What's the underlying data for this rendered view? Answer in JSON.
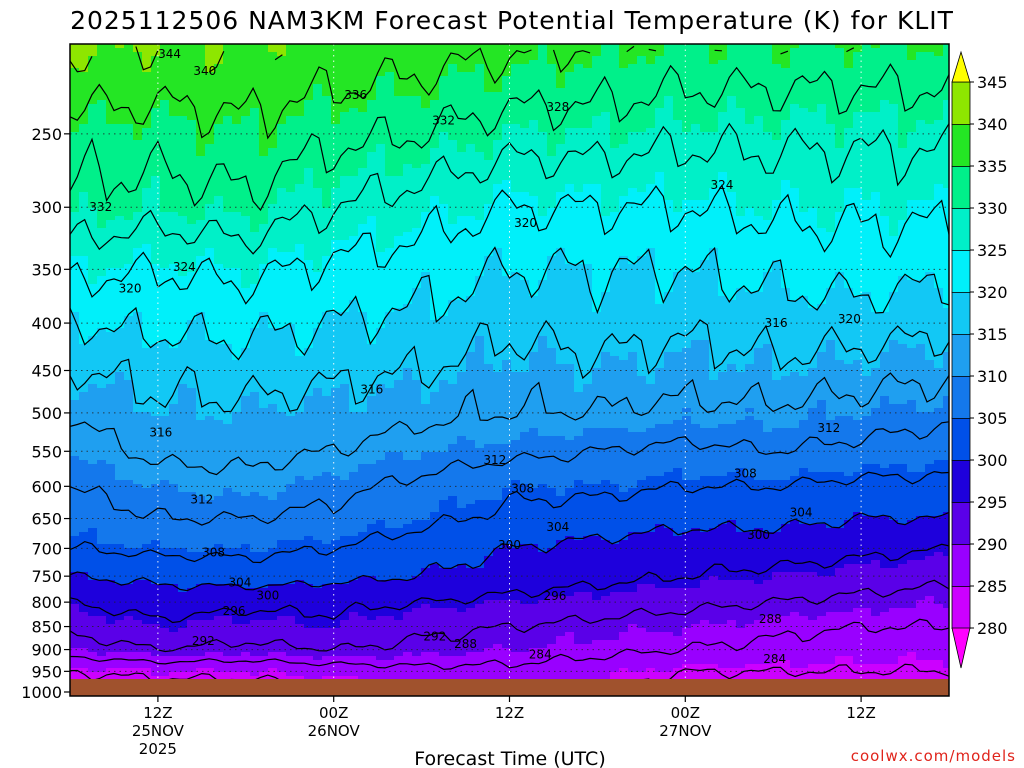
{
  "chart_data": {
    "type": "heatmap",
    "title": "2025112506 NAM3KM Forecast Potential Temperature (K) for KLIT",
    "xlabel": "Forecast Time (UTC)",
    "ylabel": "",
    "credit": "coolwx.com/models",
    "y_axis": {
      "scale": "log",
      "reversed": true,
      "ylim": [
        1010,
        200
      ],
      "ticks": [
        250,
        300,
        350,
        400,
        450,
        500,
        550,
        600,
        650,
        700,
        750,
        800,
        850,
        900,
        950,
        1000
      ],
      "tick_labels": [
        "250",
        "300",
        "350",
        "400",
        "450",
        "500",
        "550",
        "600",
        "650",
        "700",
        "750",
        "800",
        "850",
        "900",
        "950",
        "1000"
      ]
    },
    "x_axis": {
      "xlim_hours": [
        6,
        66
      ],
      "ticks": [
        {
          "hour": 12,
          "lines": [
            "12Z",
            "25NOV",
            "2025"
          ]
        },
        {
          "hour": 24,
          "lines": [
            "00Z",
            "26NOV"
          ]
        },
        {
          "hour": 36,
          "lines": [
            "12Z"
          ]
        },
        {
          "hour": 48,
          "lines": [
            "00Z",
            "27NOV"
          ]
        },
        {
          "hour": 60,
          "lines": [
            "12Z"
          ]
        }
      ]
    },
    "grid": true,
    "colorbar": {
      "levels": [
        280,
        285,
        290,
        295,
        300,
        305,
        310,
        315,
        320,
        325,
        330,
        335,
        340,
        345
      ],
      "tick_labels": [
        "280",
        "285",
        "290",
        "295",
        "300",
        "305",
        "310",
        "315",
        "320",
        "325",
        "330",
        "335",
        "340",
        "345"
      ],
      "colors": [
        "#ff00ff",
        "#cc00ff",
        "#9900ff",
        "#5a00e8",
        "#1e00dc",
        "#0050e8",
        "#1478ec",
        "#1f9ff0",
        "#12c8f5",
        "#00f0fa",
        "#00f0c8",
        "#00f08a",
        "#24e624",
        "#8ee600",
        "#d8f000",
        "#ffff00"
      ]
    },
    "theta_profiles": [
      {
        "hour": 6,
        "values": [
          [
            "1000",
            282
          ],
          [
            "950",
            284
          ],
          [
            "900",
            290
          ],
          [
            "850",
            293
          ],
          [
            "800",
            296
          ],
          [
            "750",
            300
          ],
          [
            "700",
            304
          ],
          [
            "650",
            306
          ],
          [
            "600",
            308
          ],
          [
            "550",
            310
          ],
          [
            "500",
            312
          ],
          [
            "450",
            316
          ],
          [
            "400",
            320
          ],
          [
            "350",
            325
          ],
          [
            "300",
            331
          ],
          [
            "250",
            334
          ],
          [
            "200",
            341
          ]
        ]
      },
      {
        "hour": 12,
        "values": [
          [
            "1000",
            282
          ],
          [
            "950",
            285
          ],
          [
            "900",
            292
          ],
          [
            "850",
            295
          ],
          [
            "800",
            298
          ],
          [
            "750",
            301
          ],
          [
            "700",
            305
          ],
          [
            "650",
            308
          ],
          [
            "600",
            310
          ],
          [
            "550",
            313
          ],
          [
            "500",
            315
          ],
          [
            "450",
            317
          ],
          [
            "400",
            321
          ],
          [
            "350",
            324
          ],
          [
            "300",
            330
          ],
          [
            "250",
            334
          ],
          [
            "200",
            340
          ]
        ]
      },
      {
        "hour": 18,
        "values": [
          [
            "1000",
            282
          ],
          [
            "950",
            285
          ],
          [
            "900",
            291
          ],
          [
            "850",
            294
          ],
          [
            "800",
            297
          ],
          [
            "750",
            302
          ],
          [
            "700",
            305
          ],
          [
            "650",
            308
          ],
          [
            "600",
            311
          ],
          [
            "550",
            313
          ],
          [
            "500",
            315
          ],
          [
            "450",
            318
          ],
          [
            "400",
            321
          ],
          [
            "350",
            325
          ],
          [
            "300",
            331
          ],
          [
            "250",
            335
          ],
          [
            "200",
            340
          ]
        ]
      },
      {
        "hour": 24,
        "values": [
          [
            "1000",
            283
          ],
          [
            "950",
            286
          ],
          [
            "900",
            292
          ],
          [
            "850",
            295
          ],
          [
            "800",
            297
          ],
          [
            "750",
            301
          ],
          [
            "700",
            304
          ],
          [
            "650",
            307
          ],
          [
            "600",
            309
          ],
          [
            "550",
            312
          ],
          [
            "500",
            314
          ],
          [
            "450",
            317
          ],
          [
            "400",
            320
          ],
          [
            "350",
            323
          ],
          [
            "300",
            328
          ],
          [
            "250",
            333
          ],
          [
            "200",
            339
          ]
        ]
      },
      {
        "hour": 30,
        "values": [
          [
            "1000",
            283
          ],
          [
            "950",
            287
          ],
          [
            "900",
            291
          ],
          [
            "850",
            293
          ],
          [
            "800",
            296
          ],
          [
            "750",
            300
          ],
          [
            "700",
            302
          ],
          [
            "650",
            305
          ],
          [
            "600",
            307
          ],
          [
            "550",
            310
          ],
          [
            "500",
            313
          ],
          [
            "450",
            316
          ],
          [
            "400",
            319
          ],
          [
            "350",
            322
          ],
          [
            "300",
            326
          ],
          [
            "250",
            332
          ],
          [
            "200",
            338
          ]
        ]
      },
      {
        "hour": 36,
        "values": [
          [
            "1000",
            285
          ],
          [
            "950",
            287
          ],
          [
            "900",
            290
          ],
          [
            "850",
            292
          ],
          [
            "800",
            295
          ],
          [
            "750",
            298
          ],
          [
            "700",
            300
          ],
          [
            "650",
            303
          ],
          [
            "600",
            305
          ],
          [
            "550",
            309
          ],
          [
            "500",
            312
          ],
          [
            "450",
            314
          ],
          [
            "400",
            317
          ],
          [
            "350",
            320
          ],
          [
            "300",
            324
          ],
          [
            "250",
            330
          ],
          [
            "200",
            337
          ]
        ]
      },
      {
        "hour": 42,
        "values": [
          [
            "1000",
            284
          ],
          [
            "950",
            286
          ],
          [
            "900",
            289
          ],
          [
            "850",
            291
          ],
          [
            "800",
            294
          ],
          [
            "750",
            297
          ],
          [
            "700",
            299
          ],
          [
            "650",
            302
          ],
          [
            "600",
            305
          ],
          [
            "550",
            308
          ],
          [
            "500",
            312
          ],
          [
            "450",
            315
          ],
          [
            "400",
            318
          ],
          [
            "350",
            320
          ],
          [
            "300",
            324
          ],
          [
            "250",
            330
          ],
          [
            "200",
            336
          ]
        ]
      },
      {
        "hour": 48,
        "values": [
          [
            "1000",
            282
          ],
          [
            "950",
            284
          ],
          [
            "900",
            288
          ],
          [
            "850",
            290
          ],
          [
            "800",
            293
          ],
          [
            "750",
            296
          ],
          [
            "700",
            298
          ],
          [
            "650",
            301
          ],
          [
            "600",
            304
          ],
          [
            "550",
            307
          ],
          [
            "500",
            311
          ],
          [
            "450",
            314
          ],
          [
            "400",
            317
          ],
          [
            "350",
            320
          ],
          [
            "300",
            324
          ],
          [
            "250",
            329
          ],
          [
            "200",
            335
          ]
        ]
      },
      {
        "hour": 54,
        "values": [
          [
            "1000",
            282
          ],
          [
            "950",
            284
          ],
          [
            "900",
            287
          ],
          [
            "850",
            289
          ],
          [
            "800",
            292
          ],
          [
            "750",
            295
          ],
          [
            "700",
            298
          ],
          [
            "650",
            301
          ],
          [
            "600",
            304
          ],
          [
            "550",
            308
          ],
          [
            "500",
            311
          ],
          [
            "450",
            315
          ],
          [
            "400",
            318
          ],
          [
            "350",
            321
          ],
          [
            "300",
            325
          ],
          [
            "250",
            329
          ],
          [
            "200",
            335
          ]
        ]
      },
      {
        "hour": 60,
        "values": [
          [
            "1000",
            281
          ],
          [
            "950",
            284
          ],
          [
            "900",
            286
          ],
          [
            "850",
            288
          ],
          [
            "800",
            291
          ],
          [
            "750",
            294
          ],
          [
            "700",
            297
          ],
          [
            "650",
            300
          ],
          [
            "600",
            303
          ],
          [
            "550",
            307
          ],
          [
            "500",
            310
          ],
          [
            "450",
            314
          ],
          [
            "400",
            318
          ],
          [
            "350",
            322
          ],
          [
            "300",
            325
          ],
          [
            "250",
            329
          ],
          [
            "200",
            335
          ]
        ]
      },
      {
        "hour": 66,
        "values": [
          [
            "1000",
            281
          ],
          [
            "950",
            284
          ],
          [
            "900",
            286
          ],
          [
            "850",
            288
          ],
          [
            "800",
            290
          ],
          [
            "750",
            293
          ],
          [
            "700",
            296
          ],
          [
            "650",
            300
          ],
          [
            "600",
            303
          ],
          [
            "550",
            306
          ],
          [
            "500",
            309
          ],
          [
            "450",
            313
          ],
          [
            "400",
            317
          ],
          [
            "350",
            321
          ],
          [
            "300",
            325
          ],
          [
            "250",
            329
          ],
          [
            "200",
            335
          ]
        ]
      }
    ],
    "contour_levels": [
      284,
      288,
      292,
      296,
      300,
      304,
      308,
      312,
      316,
      320,
      324,
      328,
      332,
      336,
      340,
      344
    ],
    "contour_labels": [
      {
        "text": "344",
        "hour": 12.8,
        "p": 205
      },
      {
        "text": "340",
        "hour": 15.2,
        "p": 214
      },
      {
        "text": "336",
        "hour": 25.5,
        "p": 227
      },
      {
        "text": "332",
        "hour": 31.5,
        "p": 242
      },
      {
        "text": "328",
        "hour": 39.3,
        "p": 234
      },
      {
        "text": "324",
        "hour": 50.5,
        "p": 284
      },
      {
        "text": "332",
        "hour": 8.1,
        "p": 300
      },
      {
        "text": "324",
        "hour": 13.8,
        "p": 348
      },
      {
        "text": "320",
        "hour": 10.1,
        "p": 367
      },
      {
        "text": "320",
        "hour": 37.1,
        "p": 312
      },
      {
        "text": "320",
        "hour": 59.2,
        "p": 396
      },
      {
        "text": "316",
        "hour": 54.2,
        "p": 400
      },
      {
        "text": "316",
        "hour": 26.6,
        "p": 472
      },
      {
        "text": "316",
        "hour": 12.2,
        "p": 525
      },
      {
        "text": "312",
        "hour": 35.0,
        "p": 562
      },
      {
        "text": "312",
        "hour": 57.8,
        "p": 519
      },
      {
        "text": "312",
        "hour": 15.0,
        "p": 620
      },
      {
        "text": "308",
        "hour": 36.9,
        "p": 603
      },
      {
        "text": "308",
        "hour": 52.1,
        "p": 581
      },
      {
        "text": "308",
        "hour": 15.8,
        "p": 707
      },
      {
        "text": "304",
        "hour": 39.3,
        "p": 664
      },
      {
        "text": "304",
        "hour": 55.9,
        "p": 640
      },
      {
        "text": "304",
        "hour": 17.6,
        "p": 762
      },
      {
        "text": "300",
        "hour": 36.0,
        "p": 694
      },
      {
        "text": "300",
        "hour": 53.0,
        "p": 677
      },
      {
        "text": "300",
        "hour": 19.5,
        "p": 787
      },
      {
        "text": "296",
        "hour": 39.1,
        "p": 788
      },
      {
        "text": "296",
        "hour": 17.2,
        "p": 818
      },
      {
        "text": "292",
        "hour": 15.1,
        "p": 881
      },
      {
        "text": "292",
        "hour": 30.9,
        "p": 871
      },
      {
        "text": "288",
        "hour": 33.0,
        "p": 888
      },
      {
        "text": "288",
        "hour": 53.8,
        "p": 834
      },
      {
        "text": "284",
        "hour": 38.1,
        "p": 911
      },
      {
        "text": "284",
        "hour": 54.1,
        "p": 921
      }
    ]
  }
}
